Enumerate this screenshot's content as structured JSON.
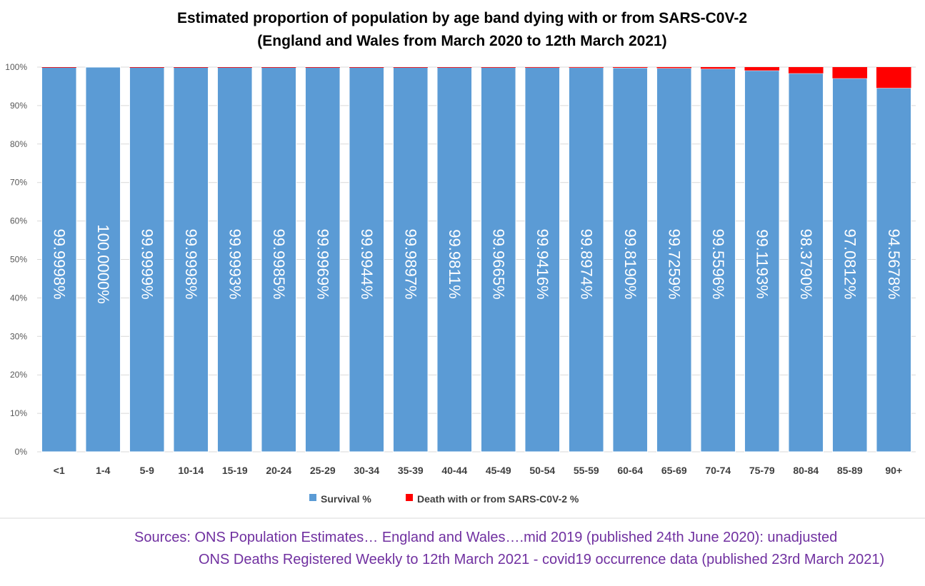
{
  "chart_data": {
    "type": "bar",
    "stacked": true,
    "title": [
      "Estimated proportion of population by age band dying with or from SARS-C0V-2",
      "(England and Wales from March 2020 to 12th March 2021)"
    ],
    "categories": [
      "<1",
      "1-4",
      "5-9",
      "10-14",
      "15-19",
      "20-24",
      "25-29",
      "30-34",
      "35-39",
      "40-44",
      "45-49",
      "50-54",
      "55-59",
      "60-64",
      "65-69",
      "70-74",
      "75-79",
      "80-84",
      "85-89",
      "90+"
    ],
    "series": [
      {
        "name": "Survival %",
        "color": "#5b9bd5",
        "values": [
          99.9998,
          100.0,
          99.9999,
          99.9998,
          99.9993,
          99.9985,
          99.9969,
          99.9944,
          99.9897,
          99.9811,
          99.9665,
          99.9416,
          99.8974,
          99.819,
          99.7259,
          99.5596,
          99.1193,
          98.379,
          97.0812,
          94.5678
        ],
        "labels": [
          "99.9998%",
          "100.0000%",
          "99.9999%",
          "99.9998%",
          "99.9993%",
          "99.9985%",
          "99.9969%",
          "99.9944%",
          "99.9897%",
          "99.9811%",
          "99.9665%",
          "99.9416%",
          "99.8974%",
          "99.8190%",
          "99.7259%",
          "99.5596%",
          "99.1193%",
          "98.3790%",
          "97.0812%",
          "94.5678%"
        ]
      },
      {
        "name": "Death with or from SARS-C0V-2 %",
        "color": "#ff0000",
        "values": [
          0.0002,
          0.0,
          0.0001,
          0.0002,
          0.0007,
          0.0015,
          0.0031,
          0.0056,
          0.0103,
          0.0189,
          0.0335,
          0.0584,
          0.1026,
          0.181,
          0.2741,
          0.4404,
          0.8807,
          1.621,
          2.9188,
          5.4322
        ]
      }
    ],
    "ylim": [
      0,
      100
    ],
    "yticks": [
      "0%",
      "10%",
      "20%",
      "30%",
      "40%",
      "50%",
      "60%",
      "70%",
      "80%",
      "90%",
      "100%"
    ],
    "grid": true,
    "legend_position": "bottom"
  },
  "sources": {
    "line1": "Sources:  ONS Population Estimates… England and Wales….mid 2019 (published 24th June 2020): unadjusted",
    "line2": "ONS Deaths Registered Weekly to 12th March 2021 - covid19 occurrence data (published 23rd March 2021)"
  }
}
